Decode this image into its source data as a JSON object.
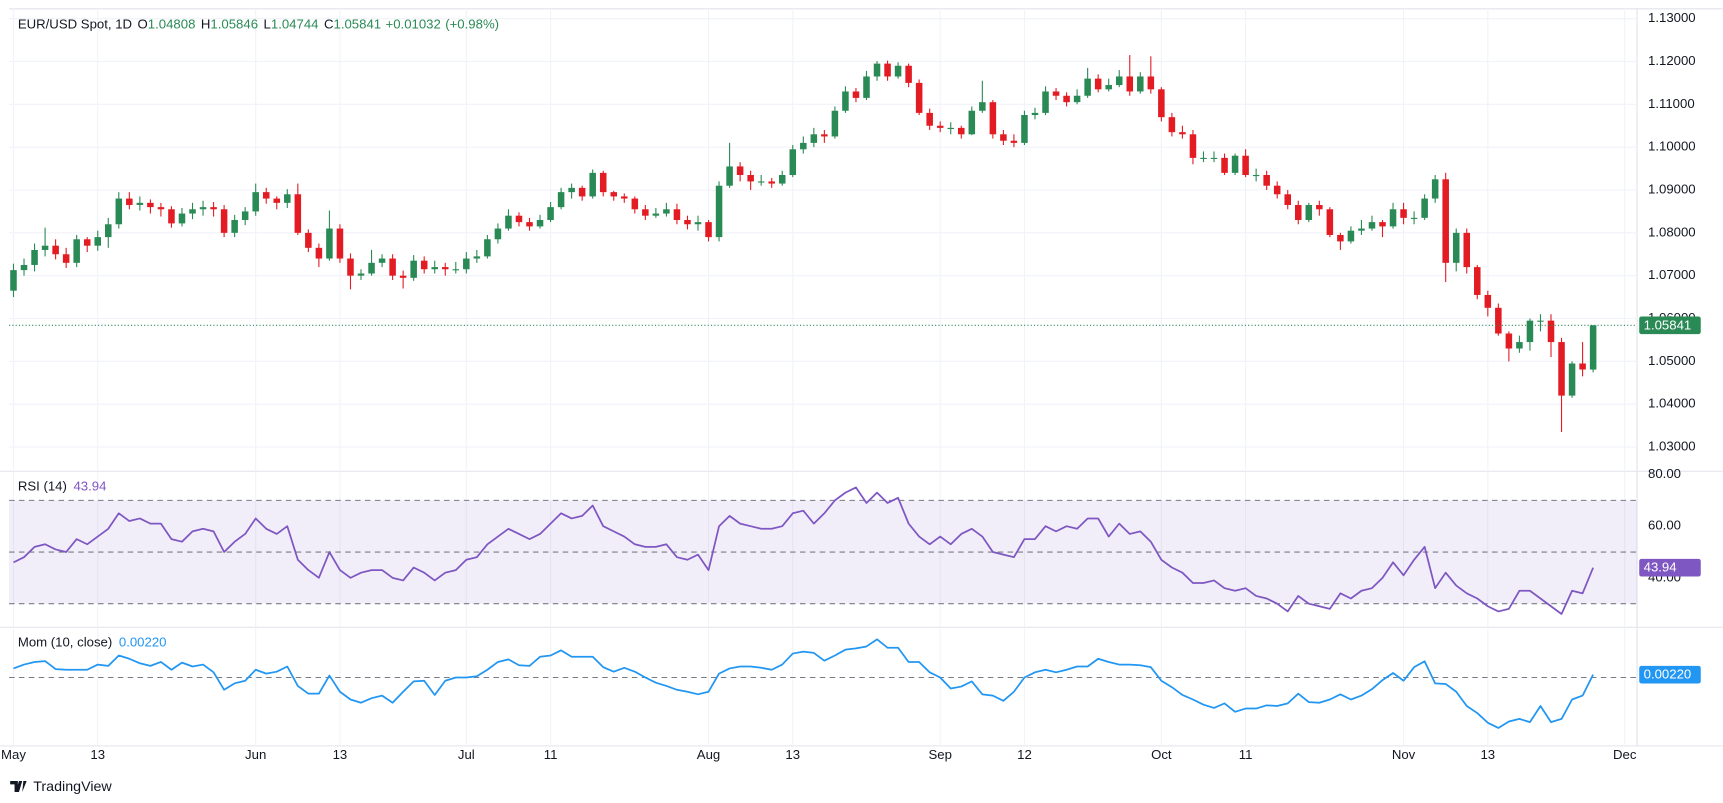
{
  "brand": "TradingView",
  "chart_data": [
    {
      "type": "candlestick",
      "title": "EUR/USD Spot, 1D",
      "legend": [
        {
          "key": "O",
          "value": 1.04808
        },
        {
          "key": "H",
          "value": 1.05846
        },
        {
          "key": "L",
          "value": 1.04744
        },
        {
          "key": "C",
          "value": 1.05841
        }
      ],
      "change": {
        "value": 0.01032,
        "label": "+0.01032"
      },
      "change_pct": {
        "value": 0.98,
        "label": "(+0.98%)"
      },
      "up_color": "#2a8a55",
      "down_color": "#e31b23",
      "grid": true,
      "xlim": [
        -0.42,
        154.17
      ],
      "xticks": [
        {
          "value": 0,
          "label": "May"
        },
        {
          "value": 8,
          "label": "13"
        },
        {
          "value": 23,
          "label": "Jun"
        },
        {
          "value": 31,
          "label": "13"
        },
        {
          "value": 43,
          "label": "Jul"
        },
        {
          "value": 51,
          "label": "11"
        },
        {
          "value": 66,
          "label": "Aug"
        },
        {
          "value": 74,
          "label": "13"
        },
        {
          "value": 88,
          "label": "Sep"
        },
        {
          "value": 96,
          "label": "12"
        },
        {
          "value": 109,
          "label": "Oct"
        },
        {
          "value": 117,
          "label": "11"
        },
        {
          "value": 132,
          "label": "Nov"
        },
        {
          "value": 140,
          "label": "13"
        },
        {
          "value": 153,
          "label": "Dec"
        }
      ],
      "ylim": [
        1.0246,
        1.1323
      ],
      "yticks": [
        {
          "value": 1.03,
          "label": "1.03000"
        },
        {
          "value": 1.04,
          "label": "1.04000"
        },
        {
          "value": 1.05,
          "label": "1.05000"
        },
        {
          "value": 1.06,
          "label": "1.06000"
        },
        {
          "value": 1.07,
          "label": "1.07000"
        },
        {
          "value": 1.08,
          "label": "1.08000"
        },
        {
          "value": 1.09,
          "label": "1.09000"
        },
        {
          "value": 1.1,
          "label": "1.10000"
        },
        {
          "value": 1.11,
          "label": "1.11000"
        },
        {
          "value": 1.12,
          "label": "1.12000"
        },
        {
          "value": 1.13,
          "label": "1.13000"
        }
      ],
      "open": [
        1.0665,
        1.0713,
        1.0725,
        1.076,
        1.077,
        1.075,
        1.073,
        1.0785,
        1.077,
        1.079,
        1.082,
        1.088,
        1.0865,
        1.087,
        1.086,
        1.0855,
        1.0822,
        1.0845,
        1.0855,
        1.086,
        1.0855,
        1.08,
        1.083,
        1.085,
        1.0895,
        1.088,
        1.087,
        1.089,
        1.08,
        1.0765,
        1.074,
        1.081,
        1.074,
        1.07,
        1.0705,
        1.073,
        1.074,
        1.07,
        1.0695,
        1.0735,
        1.0715,
        1.072,
        1.0715,
        1.0715,
        1.074,
        1.0745,
        1.0785,
        1.081,
        1.084,
        1.0825,
        1.0815,
        1.083,
        1.086,
        1.0895,
        1.0905,
        1.0885,
        1.094,
        1.0895,
        1.0885,
        1.088,
        1.0855,
        1.084,
        1.0845,
        1.0855,
        1.083,
        1.082,
        1.0825,
        1.079,
        1.091,
        1.0955,
        1.0935,
        1.092,
        1.092,
        1.0915,
        1.0935,
        1.0995,
        1.101,
        1.103,
        1.1025,
        1.1085,
        1.113,
        1.1115,
        1.1165,
        1.1195,
        1.1165,
        1.119,
        1.115,
        1.108,
        1.105,
        1.1045,
        1.1045,
        1.103,
        1.1085,
        1.1105,
        1.103,
        1.1015,
        1.101,
        1.1075,
        1.108,
        1.113,
        1.112,
        1.1105,
        1.112,
        1.116,
        1.1135,
        1.1145,
        1.1165,
        1.113,
        1.1165,
        1.1135,
        1.107,
        1.1035,
        1.103,
        1.0975,
        1.0975,
        1.0975,
        1.094,
        1.098,
        1.0935,
        1.0935,
        1.091,
        1.089,
        1.0865,
        1.083,
        1.0865,
        1.0855,
        1.0795,
        1.078,
        1.0805,
        1.081,
        1.0825,
        1.0815,
        1.0855,
        1.0835,
        1.0835,
        1.088,
        1.0925,
        1.073,
        1.08,
        1.072,
        1.0655,
        1.0625,
        1.0565,
        1.053,
        1.0545,
        1.0595,
        1.0595,
        1.0545,
        1.042,
        1.0495,
        1.04808
      ],
      "high": [
        1.0728,
        1.074,
        1.0775,
        1.0812,
        1.0785,
        1.0765,
        1.0795,
        1.079,
        1.0805,
        1.0835,
        1.0895,
        1.0895,
        1.0885,
        1.0878,
        1.087,
        1.0862,
        1.0858,
        1.087,
        1.0875,
        1.0872,
        1.0865,
        1.0842,
        1.086,
        1.0915,
        1.0905,
        1.0885,
        1.0902,
        1.0915,
        1.0808,
        1.0775,
        1.0852,
        1.082,
        1.0752,
        1.0715,
        1.076,
        1.075,
        1.075,
        1.0712,
        1.0748,
        1.0745,
        1.0735,
        1.073,
        1.0732,
        1.0755,
        1.076,
        1.0795,
        1.0822,
        1.0855,
        1.0848,
        1.0835,
        1.0842,
        1.0872,
        1.0905,
        1.0915,
        1.091,
        1.0948,
        1.0945,
        1.0898,
        1.0892,
        1.0885,
        1.0865,
        1.0858,
        1.087,
        1.0868,
        1.084,
        1.084,
        1.083,
        1.092,
        1.101,
        1.0965,
        1.0945,
        1.0935,
        1.0928,
        1.0945,
        1.1005,
        1.1025,
        1.1045,
        1.104,
        1.1095,
        1.1142,
        1.1138,
        1.1178,
        1.1201,
        1.1202,
        1.1198,
        1.1195,
        1.1158,
        1.109,
        1.106,
        1.1058,
        1.105,
        1.1095,
        1.1155,
        1.111,
        1.104,
        1.103,
        1.1085,
        1.1092,
        1.1142,
        1.1138,
        1.1128,
        1.1135,
        1.1185,
        1.117,
        1.116,
        1.118,
        1.1215,
        1.1175,
        1.1212,
        1.114,
        1.108,
        1.105,
        1.104,
        1.099,
        1.099,
        1.0985,
        1.0985,
        1.0995,
        1.095,
        1.0945,
        1.092,
        1.09,
        1.0875,
        1.087,
        1.0875,
        1.086,
        1.08,
        1.0815,
        1.083,
        1.084,
        1.083,
        1.087,
        1.087,
        1.085,
        1.089,
        1.0935,
        1.094,
        1.081,
        1.081,
        1.0725,
        1.0665,
        1.0635,
        1.057,
        1.056,
        1.06,
        1.061,
        1.061,
        1.0555,
        1.05,
        1.0545,
        1.05846
      ],
      "low": [
        1.065,
        1.07,
        1.071,
        1.0745,
        1.0738,
        1.0718,
        1.072,
        1.0755,
        1.0758,
        1.0765,
        1.081,
        1.0855,
        1.0852,
        1.0845,
        1.0838,
        1.0812,
        1.0815,
        1.0832,
        1.084,
        1.0838,
        1.079,
        1.079,
        1.0818,
        1.084,
        1.0868,
        1.0855,
        1.0858,
        1.0795,
        1.0755,
        1.072,
        1.0735,
        1.073,
        1.0668,
        1.069,
        1.07,
        1.072,
        1.069,
        1.067,
        1.0688,
        1.0705,
        1.0705,
        1.07,
        1.0705,
        1.0705,
        1.073,
        1.074,
        1.0775,
        1.0805,
        1.0815,
        1.0805,
        1.081,
        1.0825,
        1.0855,
        1.088,
        1.0875,
        1.088,
        1.0885,
        1.0875,
        1.087,
        1.0845,
        1.083,
        1.0835,
        1.0838,
        1.082,
        1.0808,
        1.0805,
        1.078,
        1.078,
        1.0905,
        1.092,
        1.09,
        1.091,
        1.0905,
        1.091,
        1.093,
        1.0985,
        1.1,
        1.101,
        1.102,
        1.108,
        1.1105,
        1.111,
        1.1155,
        1.1155,
        1.116,
        1.114,
        1.1075,
        1.104,
        1.1035,
        1.103,
        1.102,
        1.1028,
        1.108,
        1.102,
        1.1005,
        1.1,
        1.1005,
        1.1065,
        1.1075,
        1.111,
        1.1095,
        1.11,
        1.1115,
        1.1128,
        1.113,
        1.114,
        1.112,
        1.1125,
        1.1125,
        1.106,
        1.1025,
        1.102,
        1.096,
        1.0965,
        1.0965,
        1.0935,
        1.0935,
        1.093,
        1.092,
        1.09,
        1.088,
        1.0855,
        1.082,
        1.0825,
        1.084,
        1.079,
        1.076,
        1.0775,
        1.0795,
        1.0805,
        1.079,
        1.081,
        1.082,
        1.082,
        1.083,
        1.087,
        1.0685,
        1.071,
        1.0705,
        1.0645,
        1.0605,
        1.056,
        1.05,
        1.052,
        1.0525,
        1.057,
        1.051,
        1.0335,
        1.0415,
        1.0465,
        1.04744
      ],
      "close": [
        1.0713,
        1.0725,
        1.076,
        1.077,
        1.075,
        1.073,
        1.0785,
        1.077,
        1.079,
        1.082,
        1.088,
        1.0865,
        1.087,
        1.086,
        1.0855,
        1.0822,
        1.0845,
        1.0855,
        1.086,
        1.0855,
        1.08,
        1.083,
        1.085,
        1.0895,
        1.088,
        1.087,
        1.089,
        1.08,
        1.0765,
        1.074,
        1.081,
        1.074,
        1.07,
        1.0705,
        1.073,
        1.074,
        1.07,
        1.0695,
        1.0735,
        1.0715,
        1.072,
        1.0715,
        1.0715,
        1.074,
        1.0745,
        1.0785,
        1.081,
        1.084,
        1.0825,
        1.0815,
        1.083,
        1.086,
        1.0895,
        1.0905,
        1.0885,
        1.094,
        1.0895,
        1.0885,
        1.088,
        1.0855,
        1.084,
        1.0845,
        1.0855,
        1.083,
        1.082,
        1.0825,
        1.079,
        1.091,
        1.0955,
        1.0935,
        1.092,
        1.092,
        1.0915,
        1.0935,
        1.0995,
        1.101,
        1.103,
        1.1025,
        1.1085,
        1.113,
        1.1115,
        1.1165,
        1.1195,
        1.1165,
        1.119,
        1.115,
        1.108,
        1.105,
        1.1045,
        1.1045,
        1.103,
        1.1085,
        1.1105,
        1.103,
        1.1015,
        1.101,
        1.1075,
        1.108,
        1.113,
        1.112,
        1.1105,
        1.112,
        1.116,
        1.1135,
        1.1145,
        1.1165,
        1.113,
        1.1165,
        1.1135,
        1.107,
        1.1035,
        1.103,
        1.0975,
        1.0975,
        1.0975,
        1.094,
        1.098,
        1.0935,
        1.0935,
        1.091,
        1.089,
        1.0865,
        1.083,
        1.0865,
        1.0855,
        1.0795,
        1.078,
        1.0805,
        1.081,
        1.0825,
        1.0815,
        1.0855,
        1.0835,
        1.0835,
        1.088,
        1.0925,
        1.073,
        1.08,
        1.072,
        1.0655,
        1.0625,
        1.0565,
        1.053,
        1.0545,
        1.0595,
        1.0595,
        1.0545,
        1.042,
        1.0495,
        1.0481,
        1.05841
      ]
    },
    {
      "type": "line",
      "title": "RSI (14)",
      "color": "#7e57c2",
      "band_color": "rgba(126,87,194,0.10)",
      "ylim": [
        21.3,
        80.85
      ],
      "yticks": [
        {
          "value": 40,
          "label": "40.00"
        },
        {
          "value": 60,
          "label": "60.00"
        },
        {
          "value": 80,
          "label": "80.00"
        }
      ],
      "levels": [
        70,
        50,
        30
      ],
      "values": [
        46,
        48,
        52,
        53,
        51,
        50,
        55,
        53,
        56,
        59,
        65,
        62,
        63,
        61,
        61,
        55,
        54,
        58,
        59,
        58,
        50,
        54,
        57,
        63,
        59,
        57,
        60,
        47,
        43,
        40,
        50,
        43,
        40,
        42,
        43,
        43,
        40,
        39,
        44,
        42,
        39,
        42,
        43,
        47,
        48,
        53,
        56,
        59,
        57,
        55,
        57,
        61,
        65,
        63,
        64,
        68,
        60,
        58,
        56,
        53,
        52,
        52,
        53,
        48,
        47,
        49,
        43,
        60,
        64,
        61,
        60,
        59,
        59,
        60,
        65,
        66,
        61,
        65,
        70,
        73,
        75,
        69,
        73,
        69,
        71,
        61,
        56,
        53,
        56,
        53,
        57,
        59,
        56,
        50,
        49,
        48,
        55,
        55,
        60,
        58,
        60,
        59,
        63,
        63,
        56,
        61,
        57,
        58,
        54,
        47,
        44,
        42,
        38,
        38,
        39,
        36,
        35,
        36,
        33,
        32,
        30,
        27,
        33,
        30,
        29,
        28,
        34,
        32,
        35,
        36,
        40,
        46,
        41,
        47,
        52,
        36,
        42,
        37,
        34,
        32,
        29,
        27,
        28,
        35,
        35,
        32,
        29,
        26,
        35,
        34,
        43.94
      ]
    },
    {
      "type": "line",
      "title": "Mom (10, close)",
      "color": "#2196f3",
      "ylim": [
        -0.052,
        0.038
      ],
      "levels": [
        0
      ],
      "last_value": {
        "value": 0.0022,
        "label": "0.00220"
      },
      "values": [
        0.007,
        0.01,
        0.012,
        0.0127,
        0.0065,
        0.006,
        0.006,
        0.006,
        0.01,
        0.009,
        0.017,
        0.0145,
        0.011,
        0.009,
        0.012,
        0.006,
        0.0115,
        0.0085,
        0.01,
        0.004,
        -0.0095,
        -0.0045,
        -0.0025,
        0.006,
        0.003,
        0.0045,
        0.0085,
        -0.0065,
        -0.0125,
        -0.0125,
        0.0015,
        -0.011,
        -0.017,
        -0.0195,
        -0.016,
        -0.014,
        -0.0195,
        -0.011,
        -0.003,
        -0.0025,
        -0.0135,
        -0.0025,
        0.0,
        0.0,
        0.001,
        0.006,
        0.012,
        0.014,
        0.0095,
        0.009,
        0.016,
        0.017,
        0.021,
        0.016,
        0.016,
        0.016,
        0.008,
        0.0045,
        0.0075,
        0.0045,
        0.0,
        -0.004,
        -0.0065,
        -0.0095,
        -0.011,
        -0.013,
        -0.011,
        0.003,
        0.007,
        0.0085,
        0.0085,
        0.0075,
        0.006,
        0.01,
        0.0185,
        0.02,
        0.019,
        0.013,
        0.017,
        0.0215,
        0.0225,
        0.024,
        0.0295,
        0.023,
        0.023,
        0.012,
        0.012,
        0.004,
        0.0,
        -0.0085,
        -0.007,
        -0.003,
        -0.013,
        -0.014,
        -0.018,
        -0.011,
        0.0,
        0.004,
        0.006,
        0.004,
        0.006,
        0.0085,
        0.0085,
        0.0145,
        0.012,
        0.01,
        0.01,
        0.0095,
        0.008,
        -0.0025,
        -0.0075,
        -0.0135,
        -0.017,
        -0.021,
        -0.0235,
        -0.02,
        -0.0265,
        -0.024,
        -0.024,
        -0.0215,
        -0.022,
        -0.02,
        -0.0125,
        -0.019,
        -0.0195,
        -0.017,
        -0.013,
        -0.017,
        -0.014,
        -0.009,
        -0.002,
        0.0035,
        -0.0025,
        0.008,
        0.0125,
        -0.0045,
        -0.005,
        -0.011,
        -0.022,
        -0.0275,
        -0.035,
        -0.039,
        -0.034,
        -0.032,
        -0.0345,
        -0.022,
        -0.0345,
        -0.032,
        -0.017,
        -0.014,
        0.0022
      ]
    }
  ]
}
